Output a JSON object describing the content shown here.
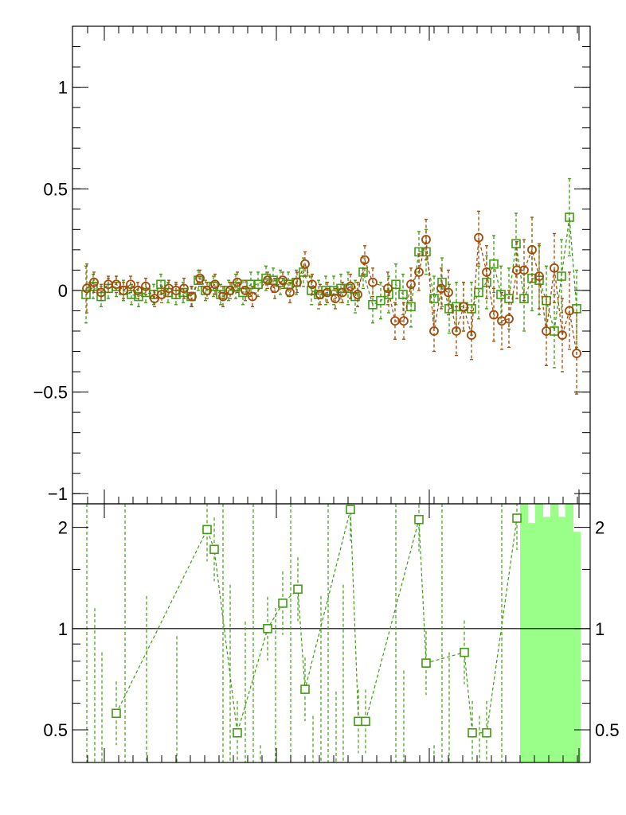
{
  "chart_data": [
    {
      "type": "scatter",
      "panel": "top",
      "ylim": [
        -1.05,
        1.3
      ],
      "yticks": [
        -1,
        -0.5,
        0,
        0.5,
        1
      ],
      "ytick_labels": [
        "−1",
        "−0.5",
        "0",
        "0.5",
        "1"
      ],
      "error_bars": true,
      "series": [
        {
          "marker": "circle",
          "color": "#a34a0a",
          "points": [
            [
              109,
              0.01,
              0.12
            ],
            [
              118,
              0.04,
              0.05
            ],
            [
              127,
              -0.01,
              0.04
            ],
            [
              136,
              0.03,
              0.04
            ],
            [
              146,
              0.03,
              0.04
            ],
            [
              155,
              0.0,
              0.04
            ],
            [
              164,
              0.03,
              0.04
            ],
            [
              173,
              0.0,
              0.04
            ],
            [
              183,
              0.02,
              0.04
            ],
            [
              194,
              -0.04,
              0.04
            ],
            [
              203,
              -0.02,
              0.04
            ],
            [
              212,
              0.01,
              0.04
            ],
            [
              221,
              0.0,
              0.04
            ],
            [
              231,
              0.01,
              0.05
            ],
            [
              241,
              -0.03,
              0.05
            ],
            [
              251,
              0.06,
              0.04
            ],
            [
              260,
              0.0,
              0.04
            ],
            [
              270,
              0.03,
              0.05
            ],
            [
              280,
              -0.03,
              0.05
            ],
            [
              289,
              0.0,
              0.04
            ],
            [
              298,
              0.04,
              0.05
            ],
            [
              308,
              0.0,
              0.05
            ],
            [
              317,
              -0.03,
              0.05
            ],
            [
              336,
              0.05,
              0.04
            ],
            [
              345,
              0.01,
              0.05
            ],
            [
              355,
              0.05,
              0.04
            ],
            [
              364,
              -0.01,
              0.05
            ],
            [
              373,
              0.04,
              0.05
            ],
            [
              383,
              0.13,
              0.06
            ],
            [
              392,
              0.03,
              0.05
            ],
            [
              402,
              -0.02,
              0.05
            ],
            [
              411,
              -0.01,
              0.05
            ],
            [
              421,
              -0.04,
              0.05
            ],
            [
              430,
              -0.01,
              0.05
            ],
            [
              440,
              0.02,
              0.06
            ],
            [
              449,
              -0.02,
              0.06
            ],
            [
              458,
              0.15,
              0.07
            ],
            [
              468,
              0.04,
              0.07
            ],
            [
              487,
              0.01,
              0.08
            ],
            [
              496,
              -0.15,
              0.09
            ],
            [
              507,
              -0.15,
              0.09
            ],
            [
              516,
              0.03,
              0.08
            ],
            [
              526,
              0.09,
              0.09
            ],
            [
              535,
              0.25,
              0.1
            ],
            [
              545,
              -0.2,
              0.1
            ],
            [
              554,
              0.01,
              0.1
            ],
            [
              563,
              -0.01,
              0.11
            ],
            [
              573,
              -0.2,
              0.12
            ],
            [
              582,
              -0.08,
              0.12
            ],
            [
              592,
              -0.22,
              0.12
            ],
            [
              601,
              0.26,
              0.13
            ],
            [
              611,
              0.09,
              0.13
            ],
            [
              620,
              -0.12,
              0.13
            ],
            [
              630,
              -0.15,
              0.14
            ],
            [
              639,
              -0.14,
              0.14
            ],
            [
              649,
              0.1,
              0.14
            ],
            [
              658,
              0.1,
              0.15
            ],
            [
              668,
              0.2,
              0.16
            ],
            [
              677,
              0.07,
              0.16
            ],
            [
              686,
              -0.2,
              0.17
            ],
            [
              696,
              0.11,
              0.17
            ],
            [
              706,
              -0.22,
              0.18
            ],
            [
              715,
              -0.1,
              0.19
            ],
            [
              724,
              -0.31,
              0.2
            ]
          ]
        },
        {
          "marker": "square",
          "color": "#3f9c10",
          "points": [
            [
              108,
              -0.02,
              0.14
            ],
            [
              117,
              0.02,
              0.06
            ],
            [
              127,
              -0.03,
              0.05
            ],
            [
              136,
              0.01,
              0.05
            ],
            [
              146,
              0.02,
              0.05
            ],
            [
              155,
              0.0,
              0.05
            ],
            [
              165,
              -0.02,
              0.05
            ],
            [
              174,
              -0.03,
              0.05
            ],
            [
              183,
              -0.01,
              0.05
            ],
            [
              193,
              -0.02,
              0.05
            ],
            [
              202,
              0.03,
              0.05
            ],
            [
              211,
              -0.01,
              0.05
            ],
            [
              221,
              -0.02,
              0.05
            ],
            [
              230,
              -0.01,
              0.05
            ],
            [
              240,
              -0.03,
              0.05
            ],
            [
              249,
              0.05,
              0.05
            ],
            [
              258,
              0.0,
              0.05
            ],
            [
              268,
              0.02,
              0.05
            ],
            [
              277,
              -0.02,
              0.05
            ],
            [
              287,
              0.0,
              0.05
            ],
            [
              296,
              0.02,
              0.06
            ],
            [
              305,
              -0.01,
              0.06
            ],
            [
              315,
              0.03,
              0.06
            ],
            [
              324,
              0.03,
              0.06
            ],
            [
              334,
              0.06,
              0.06
            ],
            [
              343,
              0.05,
              0.06
            ],
            [
              352,
              0.04,
              0.06
            ],
            [
              362,
              0.03,
              0.06
            ],
            [
              372,
              0.04,
              0.06
            ],
            [
              381,
              0.09,
              0.07
            ],
            [
              391,
              0.0,
              0.07
            ],
            [
              400,
              -0.02,
              0.07
            ],
            [
              409,
              0.0,
              0.07
            ],
            [
              419,
              0.0,
              0.07
            ],
            [
              428,
              0.01,
              0.07
            ],
            [
              437,
              0.01,
              0.08
            ],
            [
              446,
              -0.03,
              0.08
            ],
            [
              456,
              0.09,
              0.08
            ],
            [
              468,
              -0.07,
              0.09
            ],
            [
              478,
              -0.05,
              0.09
            ],
            [
              488,
              -0.02,
              0.09
            ],
            [
              497,
              0.03,
              0.1
            ],
            [
              506,
              -0.02,
              0.1
            ],
            [
              516,
              -0.08,
              0.1
            ],
            [
              526,
              0.19,
              0.1
            ],
            [
              535,
              0.19,
              0.11
            ],
            [
              545,
              -0.04,
              0.11
            ],
            [
              555,
              0.04,
              0.12
            ],
            [
              564,
              -0.09,
              0.12
            ],
            [
              573,
              -0.08,
              0.12
            ],
            [
              582,
              -0.08,
              0.12
            ],
            [
              592,
              -0.09,
              0.13
            ],
            [
              601,
              -0.01,
              0.13
            ],
            [
              611,
              0.04,
              0.13
            ],
            [
              620,
              0.13,
              0.14
            ],
            [
              629,
              -0.02,
              0.14
            ],
            [
              639,
              -0.04,
              0.15
            ],
            [
              648,
              0.23,
              0.15
            ],
            [
              658,
              -0.04,
              0.16
            ],
            [
              668,
              0.06,
              0.16
            ],
            [
              677,
              0.05,
              0.17
            ],
            [
              686,
              -0.05,
              0.17
            ],
            [
              696,
              -0.2,
              0.18
            ],
            [
              705,
              0.07,
              0.18
            ],
            [
              715,
              0.36,
              0.19
            ],
            [
              724,
              -0.09,
              0.19
            ]
          ]
        }
      ]
    },
    {
      "type": "scatter",
      "panel": "bottom",
      "ylim": [
        0.4,
        2.35
      ],
      "yticks": [
        0.5,
        1,
        2
      ],
      "ytick_labels": [
        "0.5",
        "1",
        "2"
      ],
      "reference_line": 1,
      "series": [
        {
          "marker": "square",
          "color": "#3f9c10",
          "points": [
            [
              146,
              0.56
            ],
            [
              260,
              1.97
            ],
            [
              269,
              1.72
            ],
            [
              298,
              0.49
            ],
            [
              336,
              1.0
            ],
            [
              355,
              1.19
            ],
            [
              374,
              1.31
            ],
            [
              383,
              0.66
            ],
            [
              440,
              2.26
            ],
            [
              450,
              0.53
            ],
            [
              459,
              0.53
            ],
            [
              526,
              2.11
            ],
            [
              535,
              0.79
            ],
            [
              583,
              0.85
            ],
            [
              593,
              0.49
            ],
            [
              611,
              0.49
            ],
            [
              649,
              2.13
            ]
          ]
        }
      ],
      "shaded_region": {
        "color": "#99ff88",
        "bins": [
          [
            653,
            2.35
          ],
          [
            662,
            2.35
          ],
          [
            663,
            2.35
          ],
          [
            672,
            2.35
          ],
          [
            672,
            2.35
          ],
          [
            682,
            2.35
          ],
          [
            682,
            2.35
          ],
          [
            691,
            2.35
          ],
          [
            691,
            2.35
          ],
          [
            701,
            2.35
          ],
          [
            701,
            2.35
          ],
          [
            710,
            2.35
          ],
          [
            710,
            2.35
          ],
          [
            720,
            2.35
          ],
          [
            720,
            2.35
          ],
          [
            729,
            2.35
          ]
        ],
        "cutouts": [
          [
            663,
            672,
            2.06
          ],
          [
            682,
            691,
            2.15
          ],
          [
            701,
            710,
            2.15
          ],
          [
            720,
            729,
            1.94
          ]
        ]
      }
    }
  ]
}
